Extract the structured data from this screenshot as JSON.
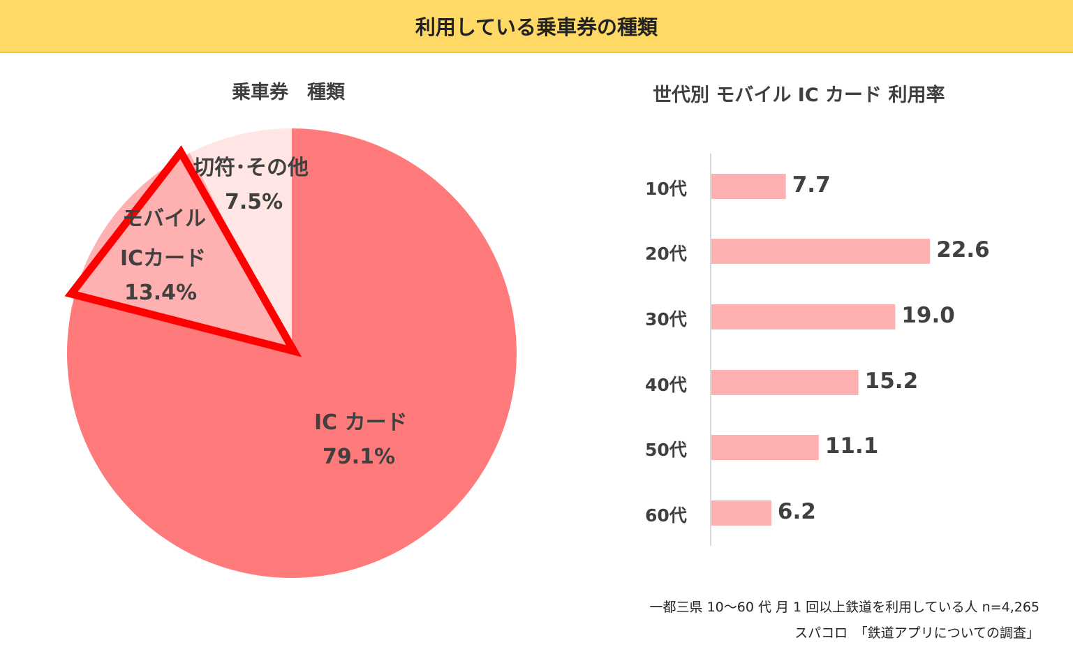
{
  "header": {
    "title": "利用している乗車券の種類"
  },
  "chart_data": [
    {
      "type": "pie",
      "title": "乗車券　種類",
      "slices": [
        {
          "label": "IC カード",
          "value": 79.1,
          "value_label": "79.1%",
          "color": "#FF7B7B"
        },
        {
          "label_lines": [
            "モバイル",
            "ICカード"
          ],
          "value": 13.4,
          "value_label": "13.4%",
          "color": "#FFB0B0",
          "highlighted": true
        },
        {
          "label": "切符･その他",
          "value": 7.5,
          "value_label": "7.5%",
          "color": "#FFE5E3"
        }
      ],
      "highlight_color": "#FF0000"
    },
    {
      "type": "bar",
      "orientation": "horizontal",
      "title": "世代別 モバイル IC カード 利用率",
      "categories": [
        "10代",
        "20代",
        "30代",
        "40代",
        "50代",
        "60代"
      ],
      "values": [
        7.7,
        22.6,
        19.0,
        15.2,
        11.1,
        6.2
      ],
      "value_labels": [
        "7.7",
        "22.6",
        "19.0",
        "15.2",
        "11.1",
        "6.2"
      ],
      "color": "#FFB0B0"
    }
  ],
  "notes": [
    "一都三県 10～60 代 月 1 回以上鉄道を利用している人  n=4,265",
    "スパコロ　「鉄道アプリについての調査」"
  ]
}
